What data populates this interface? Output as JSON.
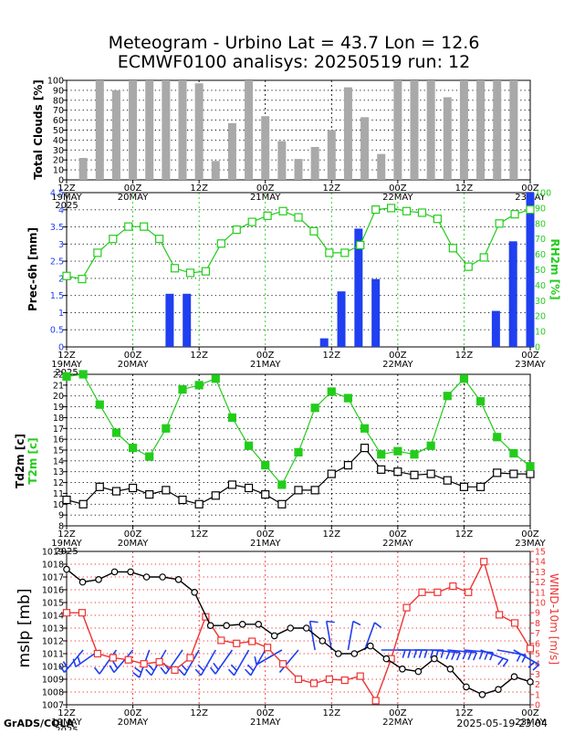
{
  "title": {
    "line1": "Meteogram - Urbino Lat = 43.7 Lon = 12.6",
    "line2": "ECMWF0100 analisys: 20250519 run: 12"
  },
  "footer": {
    "left": "GrADS/COLA",
    "right": "2025-05-19-23:04"
  },
  "colors": {
    "cloud_bar": "#a9a9a9",
    "precip_bar": "#1f3ff0",
    "rh": "#23cc1b",
    "t2m": "#23cc1b",
    "td2m": "#000000",
    "mslp": "#000000",
    "wind": "#ee3333",
    "barb": "#1f3ff0"
  },
  "chart_data": [
    {
      "type": "bar",
      "title": "",
      "ylabel": "Total Clouds [%]",
      "ylim": [
        0,
        100
      ],
      "yticks": [
        0,
        10,
        20,
        30,
        40,
        50,
        60,
        70,
        80,
        90,
        100
      ],
      "x_tick_labels": [
        {
          "top": "12Z",
          "bottom": "19MAY"
        },
        {
          "top": "00Z",
          "bottom": "20MAY"
        },
        {
          "top": "12Z",
          "bottom": ""
        },
        {
          "top": "00Z",
          "bottom": "21MAY"
        },
        {
          "top": "12Z",
          "bottom": ""
        },
        {
          "top": "00Z",
          "bottom": "22MAY"
        },
        {
          "top": "12Z",
          "bottom": ""
        },
        {
          "top": "00Z",
          "bottom": "23MAY"
        }
      ],
      "year_label": "2025",
      "values": [
        22,
        100,
        90,
        100,
        100,
        100,
        100,
        97,
        19,
        57,
        100,
        64,
        39,
        21,
        33,
        50,
        93,
        63,
        26,
        100,
        100,
        100,
        83,
        100,
        100,
        100,
        100
      ]
    },
    {
      "type": "bar+line",
      "title": "",
      "ylabel": "Prec-6h [mm]",
      "ylabel_right": "RH2m [%]",
      "ylim": [
        0,
        4.5
      ],
      "yticks": [
        "0",
        "0.5",
        "1",
        "1.5",
        "2",
        "2.5",
        "3",
        "3.5",
        "4",
        "4.5"
      ],
      "ylim_right": [
        0,
        100
      ],
      "yticks_right": [
        0,
        10,
        20,
        30,
        40,
        50,
        60,
        70,
        80,
        90,
        100
      ],
      "year_label": "2025",
      "precip": [
        0,
        0,
        0,
        0,
        0,
        0,
        1.55,
        1.55,
        0,
        0,
        0,
        0,
        0,
        0,
        0,
        0.25,
        1.62,
        3.45,
        1.98,
        0,
        0,
        0,
        0,
        0,
        0,
        1.05,
        3.08,
        4.5
      ],
      "rh": [
        46,
        44,
        61,
        70,
        78,
        78,
        70,
        51,
        48,
        49,
        67,
        76,
        81,
        85,
        88,
        84,
        75,
        61,
        61,
        66,
        89,
        90,
        88,
        87,
        83,
        64,
        52,
        58,
        80,
        86,
        89
      ]
    },
    {
      "type": "line",
      "title": "",
      "ylabel": "Td2m [c]",
      "ylabel2": "T2m [c]",
      "ylim": [
        8,
        22
      ],
      "yticks": [
        8,
        9,
        10,
        11,
        12,
        13,
        14,
        15,
        16,
        17,
        18,
        19,
        20,
        21,
        22
      ],
      "year_label": "2025",
      "series": [
        {
          "name": "T2m [c]",
          "values": [
            21.8,
            22.0,
            19.2,
            16.6,
            15.2,
            14.4,
            17.0,
            20.6,
            21.0,
            21.6,
            18.0,
            15.4,
            13.6,
            11.8,
            14.8,
            18.9,
            20.4,
            19.8,
            17.0,
            14.6,
            14.9,
            14.6,
            15.4,
            20.0,
            21.6,
            19.5,
            16.2,
            14.7,
            13.5
          ]
        },
        {
          "name": "Td2m [c]",
          "values": [
            10.4,
            10.0,
            11.6,
            11.2,
            11.5,
            10.9,
            11.3,
            10.4,
            10.0,
            10.8,
            11.8,
            11.5,
            10.9,
            10.0,
            11.3,
            11.3,
            12.8,
            13.6,
            15.2,
            13.2,
            13.0,
            12.7,
            12.8,
            12.2,
            11.6,
            11.6,
            12.9,
            12.8,
            12.8
          ]
        }
      ]
    },
    {
      "type": "line",
      "title": "",
      "ylabel": "mslp [mb]",
      "ylabel_right": "WIND-10m [m/s]",
      "ylim": [
        1007,
        1019
      ],
      "yticks": [
        1007,
        1008,
        1009,
        1010,
        1011,
        1012,
        1013,
        1014,
        1015,
        1016,
        1017,
        1018,
        1019
      ],
      "ylim_right": [
        0,
        15
      ],
      "yticks_right": [
        0,
        1,
        2,
        3,
        4,
        5,
        6,
        7,
        8,
        9,
        10,
        11,
        12,
        13,
        14,
        15
      ],
      "year_label": "2025",
      "series": [
        {
          "name": "mslp [mb]",
          "values": [
            1017.6,
            1016.6,
            1016.8,
            1017.4,
            1017.4,
            1017.0,
            1017.0,
            1016.8,
            1015.8,
            1013.2,
            1013.2,
            1013.3,
            1013.3,
            1012.4,
            1013.0,
            1013.0,
            1012.0,
            1011.0,
            1011.0,
            1011.6,
            1010.6,
            1009.8,
            1009.6,
            1010.6,
            1009.8,
            1008.4,
            1007.8,
            1008.2,
            1009.2,
            1008.8
          ]
        },
        {
          "name": "WIND-10m [m/s]",
          "values": [
            9.0,
            9.0,
            5.0,
            4.6,
            4.4,
            4.0,
            4.2,
            3.4,
            4.6,
            8.6,
            6.3,
            6.0,
            6.2,
            5.6,
            4.0,
            2.5,
            2.1,
            2.5,
            2.4,
            2.8,
            0.4,
            4.5,
            9.5,
            11.0,
            11.0,
            11.6,
            11.0,
            14.0,
            8.8,
            8.0,
            5.5
          ]
        }
      ],
      "wind_barbs": [
        {
          "dir": 220,
          "speed": 8
        },
        {
          "dir": 235,
          "speed": 8
        },
        {
          "dir": 215,
          "speed": 7
        },
        {
          "dir": 220,
          "speed": 8
        },
        {
          "dir": 200,
          "speed": 8
        },
        {
          "dir": 210,
          "speed": 8
        },
        {
          "dir": 215,
          "speed": 8
        },
        {
          "dir": 210,
          "speed": 8
        },
        {
          "dir": 210,
          "speed": 8
        },
        {
          "dir": 215,
          "speed": 9
        },
        {
          "dir": 210,
          "speed": 9
        },
        {
          "dir": 210,
          "speed": 8
        },
        {
          "dir": 240,
          "speed": 3
        },
        {
          "dir": 220,
          "speed": 2
        },
        {
          "dir": 350,
          "speed": 5
        },
        {
          "dir": 350,
          "speed": 5
        },
        {
          "dir": 10,
          "speed": 6
        },
        {
          "dir": 20,
          "speed": 5
        },
        {
          "dir": 90,
          "speed": 12
        },
        {
          "dir": 90,
          "speed": 14
        },
        {
          "dir": 90,
          "speed": 14
        },
        {
          "dir": 95,
          "speed": 14
        },
        {
          "dir": 95,
          "speed": 14
        },
        {
          "dir": 95,
          "speed": 13
        },
        {
          "dir": 110,
          "speed": 12
        },
        {
          "dir": 100,
          "speed": 11
        },
        {
          "dir": 120,
          "speed": 10
        }
      ]
    }
  ]
}
